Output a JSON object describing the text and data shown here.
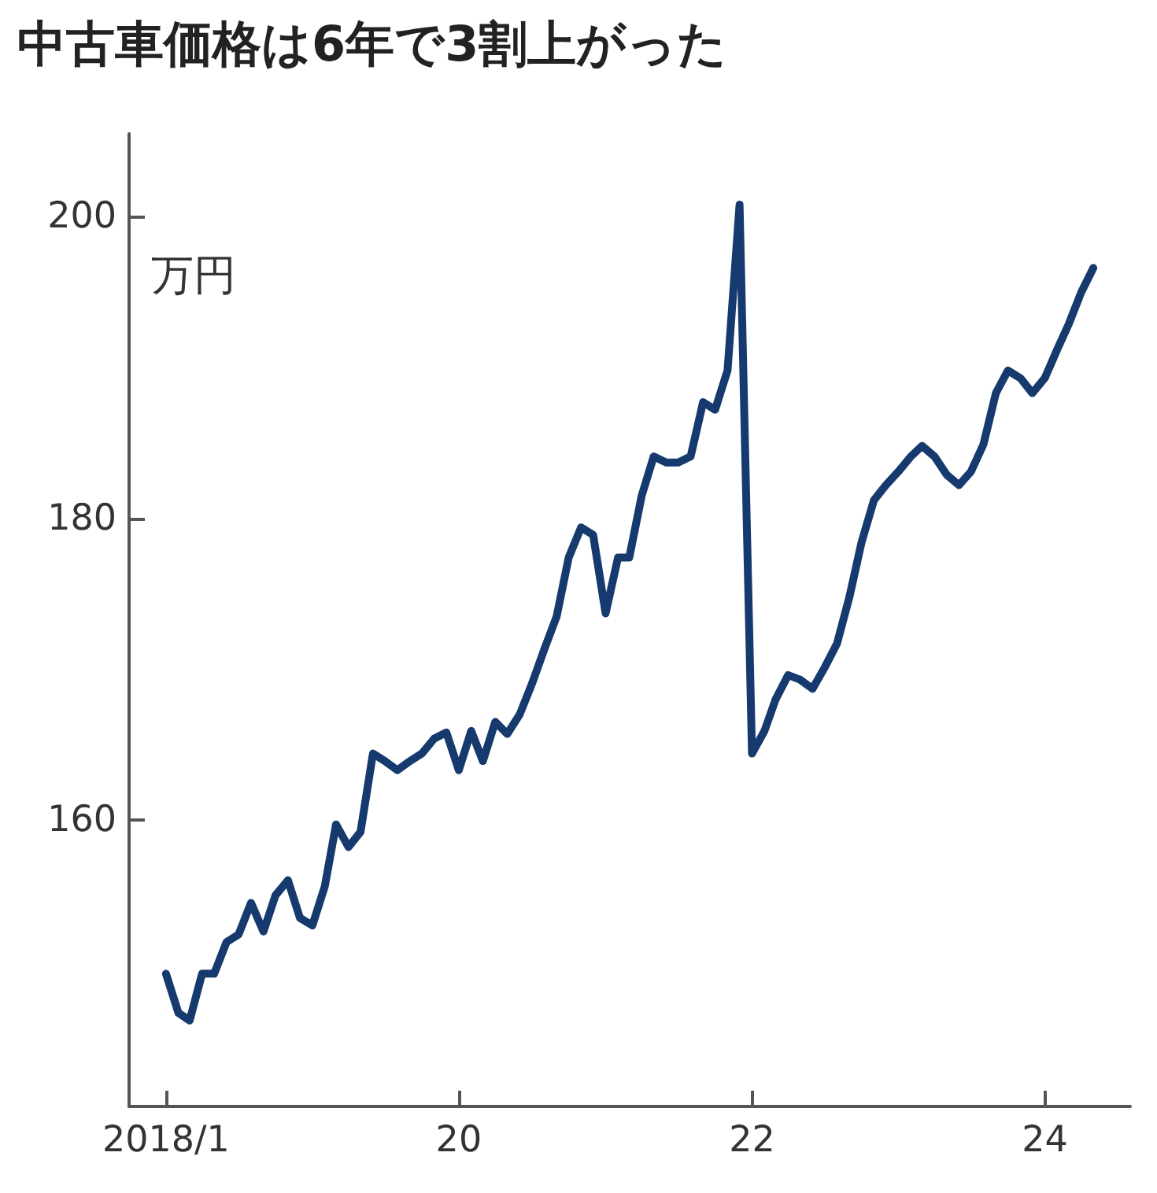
{
  "chart_data": {
    "type": "line",
    "title": "中古車価格は6年で3割上がった",
    "ylabel": "万円",
    "x": [
      "2018-01",
      "2018-02",
      "2018-03",
      "2018-04",
      "2018-05",
      "2018-06",
      "2018-07",
      "2018-08",
      "2018-09",
      "2018-10",
      "2018-11",
      "2018-12",
      "2019-01",
      "2019-02",
      "2019-03",
      "2019-04",
      "2019-05",
      "2019-06",
      "2019-07",
      "2019-08",
      "2019-09",
      "2019-10",
      "2019-11",
      "2019-12",
      "2020-01",
      "2020-02",
      "2020-03",
      "2020-04",
      "2020-05",
      "2020-06",
      "2020-07",
      "2020-08",
      "2020-09",
      "2020-10",
      "2020-11",
      "2020-12",
      "2021-01",
      "2021-02",
      "2021-03",
      "2021-04",
      "2021-05",
      "2021-06",
      "2021-07",
      "2021-08",
      "2021-09",
      "2021-10",
      "2021-11",
      "2021-12",
      "2022-01",
      "2022-02",
      "2022-03",
      "2022-04",
      "2022-05",
      "2022-06",
      "2022-07",
      "2022-08",
      "2022-09",
      "2022-10",
      "2022-11",
      "2022-12",
      "2023-01",
      "2023-02",
      "2023-03",
      "2023-04",
      "2023-05",
      "2023-06",
      "2023-07",
      "2023-08",
      "2023-09",
      "2023-10",
      "2023-11",
      "2023-12",
      "2024-01",
      "2024-02",
      "2024-03",
      "2024-04",
      "2024-05"
    ],
    "series": [
      {
        "color": "#163a6e",
        "values": [
          149.8,
          147.2,
          146.7,
          149.8,
          149.8,
          151.9,
          152.4,
          154.5,
          152.6,
          155.0,
          156.0,
          153.5,
          153.0,
          155.6,
          159.7,
          158.2,
          159.2,
          164.4,
          163.9,
          163.3,
          163.9,
          164.4,
          165.4,
          165.8,
          163.3,
          165.9,
          163.9,
          166.5,
          165.7,
          167.0,
          169.0,
          171.3,
          173.5,
          177.4,
          179.4,
          178.9,
          173.7,
          177.4,
          177.4,
          181.5,
          184.1,
          183.7,
          183.7,
          184.1,
          187.7,
          187.2,
          189.8,
          200.8,
          164.4,
          165.9,
          168.0,
          169.6,
          169.3,
          168.7,
          170.1,
          171.7,
          174.8,
          178.4,
          181.2,
          182.2,
          183.1,
          184.1,
          184.8,
          184.1,
          182.9,
          182.2,
          183.1,
          184.9,
          188.3,
          189.8,
          189.3,
          188.3,
          189.3,
          191.2,
          192.9,
          195.0,
          196.6
        ]
      }
    ],
    "xlim": [
      "2017-10",
      "2024-08"
    ],
    "xticks": [
      {
        "value": "2018-01",
        "label": "2018/1"
      },
      {
        "value": "2020-01",
        "label": "20"
      },
      {
        "value": "2022-01",
        "label": "22"
      },
      {
        "value": "2024-01",
        "label": "24"
      }
    ],
    "ylim": [
      141,
      205.5
    ],
    "yticks": [
      160,
      180,
      200
    ],
    "grid": false,
    "marker": "none",
    "line_style": "solid"
  }
}
